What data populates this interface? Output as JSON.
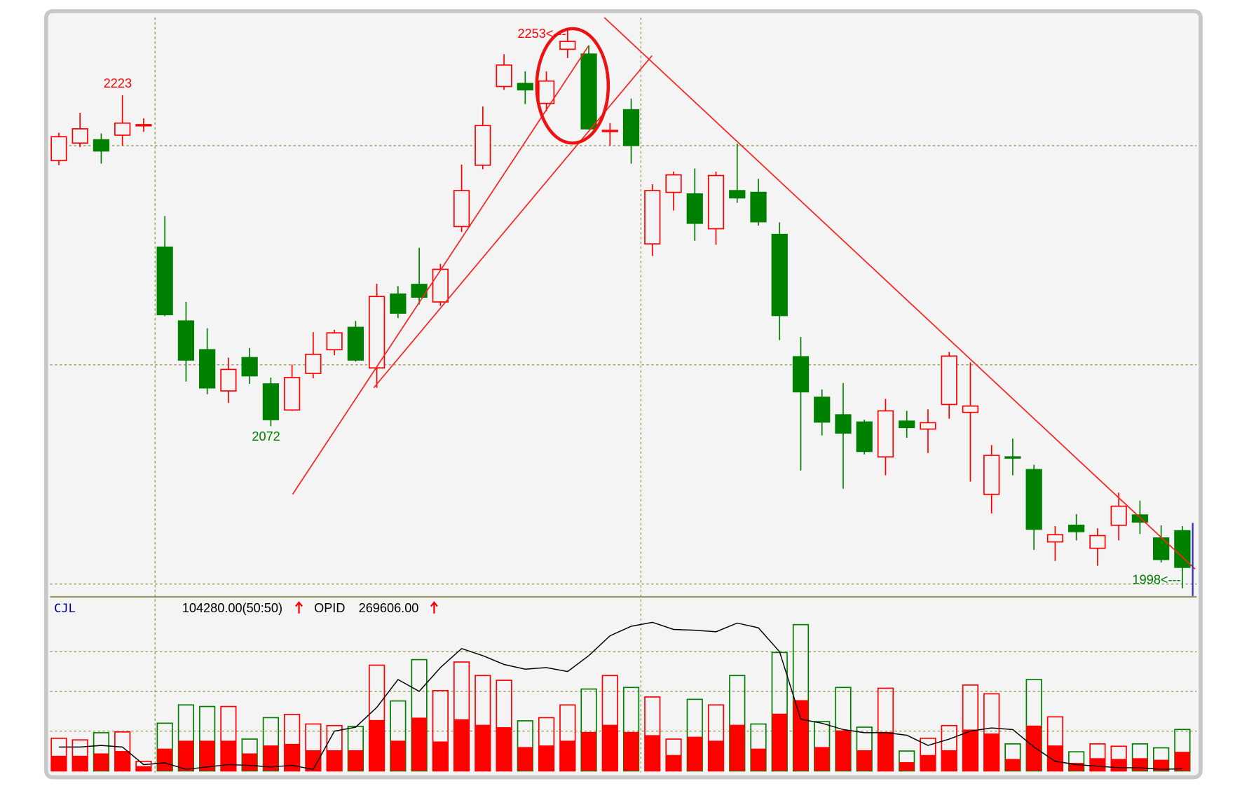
{
  "chart_data": [
    {
      "type": "candlestick",
      "open": [
        2193.2,
        2201.2,
        2202.7,
        2204.8,
        2209.2,
        2153.7,
        2120.0,
        2106.9,
        2088.1,
        2103.3,
        2091.3,
        2079.4,
        2096.1,
        2106.9,
        2117.1,
        2098.6,
        2132.3,
        2136.7,
        2128.7,
        2163.1,
        2191.1,
        2227.0,
        2228.4,
        2219.3,
        2244.0,
        2241.8,
        2206.7,
        2216.4,
        2155.2,
        2178.7,
        2178.0,
        2162.1,
        2179.5,
        2178.7,
        2159.5,
        2103.7,
        2085.2,
        2077.2,
        2073.9,
        2058.0,
        2074.3,
        2070.7,
        2081.9,
        2078.3,
        2040.9,
        2058.0,
        2052.2,
        2019.2,
        2026.8,
        2016.3,
        2026.8,
        2031.5,
        2021.0,
        2024.3
      ],
      "high": [
        2205.9,
        2215.0,
        2205.6,
        2223,
        2212.5,
        2167.9,
        2128.7,
        2116.7,
        2103.3,
        2107.7,
        2094.2,
        2100.1,
        2114.9,
        2116.0,
        2120.0,
        2137.0,
        2135.9,
        2153.4,
        2146.1,
        2191.4,
        2217.9,
        2241.8,
        2233.9,
        2233.9,
        2253,
        2245.8,
        2210.3,
        2221.5,
        2182.4,
        2188.2,
        2189.6,
        2188.2,
        2200.9,
        2184.9,
        2165.0,
        2112.7,
        2088.8,
        2091.7,
        2075.0,
        2084.5,
        2079.0,
        2079.7,
        2105.9,
        2101.1,
        2063.4,
        2066.3,
        2054.4,
        2026.4,
        2031.9,
        2025.4,
        2041.7,
        2038.0,
        2026.8,
        2026.4
      ],
      "low": [
        2191.1,
        2199.4,
        2191.8,
        2200.1,
        2206.3,
        2122.2,
        2092.4,
        2086.6,
        2082.6,
        2091.3,
        2072,
        2079.0,
        2093.9,
        2104.4,
        2101.5,
        2089.5,
        2121.4,
        2127.6,
        2126.9,
        2160.6,
        2189.3,
        2225.5,
        2219.0,
        2215.7,
        2240.0,
        2207.4,
        2200.1,
        2191.8,
        2149.7,
        2170.4,
        2156.6,
        2154.8,
        2174.0,
        2163.5,
        2111.3,
        2051.8,
        2067.8,
        2043.5,
        2059.1,
        2049.6,
        2066.7,
        2059.8,
        2075.4,
        2046.7,
        2032.2,
        2049.6,
        2015.6,
        2010.5,
        2019.9,
        2008.3,
        2019.9,
        2022.8,
        2009.8,
        1998
      ],
      "close": [
        2204.1,
        2207.7,
        2197.6,
        2210.3,
        2209.6,
        2122.9,
        2102.2,
        2089.5,
        2097.9,
        2095.0,
        2075.0,
        2094.2,
        2104.8,
        2114.6,
        2102.2,
        2131.2,
        2123.6,
        2130.9,
        2143.6,
        2179.5,
        2209.2,
        2236.8,
        2225.5,
        2229.5,
        2247.6,
        2207.7,
        2207.0,
        2200.1,
        2179.5,
        2186.7,
        2164.6,
        2186.4,
        2176.2,
        2165.3,
        2122.5,
        2087.7,
        2073.9,
        2068.9,
        2060.5,
        2079.0,
        2071.4,
        2073.6,
        2104.0,
        2081.2,
        2058.7,
        2057.6,
        2025.0,
        2022.5,
        2023.9,
        2022.1,
        2035.5,
        2028.3,
        2011.2,
        2007.6
      ],
      "up_color": "#ff0000",
      "down_color": "#008000",
      "ylim": [
        1994.5,
        2258.5
      ],
      "yticks": [
        2000,
        2100,
        2200
      ],
      "grid": true,
      "annotations": [
        {
          "text": "2223",
          "x": 3,
          "y": 2223,
          "position": "above",
          "color": "#ff0000"
        },
        {
          "text": "2072",
          "x": 10,
          "y": 2072,
          "position": "below",
          "color": "#008000"
        },
        {
          "text": "2253<---",
          "x": 24,
          "y": 2253,
          "position": "left",
          "color": "#ff0000"
        },
        {
          "text": "1998<---",
          "x": 53,
          "y": 1998,
          "position": "left",
          "color": "#008000"
        }
      ]
    },
    {
      "type": "bar",
      "title": "CJL",
      "readouts": [
        {
          "text": "104280.00(50:50)"
        },
        {
          "name": "OPID",
          "text": "269606.00"
        }
      ],
      "ylim": [
        0,
        436000
      ],
      "yticks": [
        100000,
        200000,
        300000
      ],
      "grid": true,
      "y2lim": [
        268000,
        400000
      ],
      "series": [
        {
          "values": [
            82000,
            78000,
            96000,
            98000,
            24000,
            120000,
            166000,
            162000,
            162000,
            80000,
            134000,
            142000,
            118000,
            114000,
            112000,
            266000,
            176000,
            280000,
            202000,
            274000,
            240000,
            228000,
            126000,
            134000,
            166000,
            206000,
            240000,
            210000,
            186000,
            80000,
            180000,
            166000,
            240000,
            118000,
            298000,
            368000,
            124000,
            210000,
            110000,
            208000,
            50000,
            82000,
            114000,
            216000,
            194000,
            68000,
            230000,
            136000,
            48000,
            68000,
            62000,
            68000,
            58000,
            104280
          ]
        },
        {
          "color": "#ff0000",
          "values": [
            38000,
            38000,
            44000,
            50000,
            12000,
            56000,
            76000,
            76000,
            76000,
            44000,
            64000,
            68000,
            52000,
            52000,
            52000,
            128000,
            76000,
            134000,
            74000,
            130000,
            116000,
            110000,
            60000,
            64000,
            76000,
            98000,
            116000,
            98000,
            90000,
            40000,
            86000,
            76000,
            116000,
            56000,
            144000,
            178000,
            60000,
            102000,
            52000,
            98000,
            22000,
            40000,
            52000,
            104000,
            94000,
            30000,
            114000,
            64000,
            20000,
            32000,
            30000,
            32000,
            28000,
            48000
          ]
        },
        {
          "name": "OPID",
          "type": "line",
          "axis": "y2",
          "color": "#000000",
          "values": [
            286200,
            286200,
            287400,
            286200,
            272800,
            274100,
            269200,
            271000,
            272800,
            272200,
            271000,
            272200,
            269200,
            298300,
            301300,
            316400,
            337600,
            328600,
            346700,
            361200,
            355800,
            349100,
            345500,
            346700,
            343700,
            355800,
            370900,
            378200,
            381200,
            375800,
            375200,
            374000,
            380600,
            377000,
            358800,
            307400,
            304300,
            299500,
            297100,
            297100,
            295200,
            287400,
            292200,
            298300,
            300700,
            299500,
            286200,
            275300,
            272800,
            271600,
            270400,
            270400,
            269200,
            269606
          ]
        }
      ]
    }
  ]
}
